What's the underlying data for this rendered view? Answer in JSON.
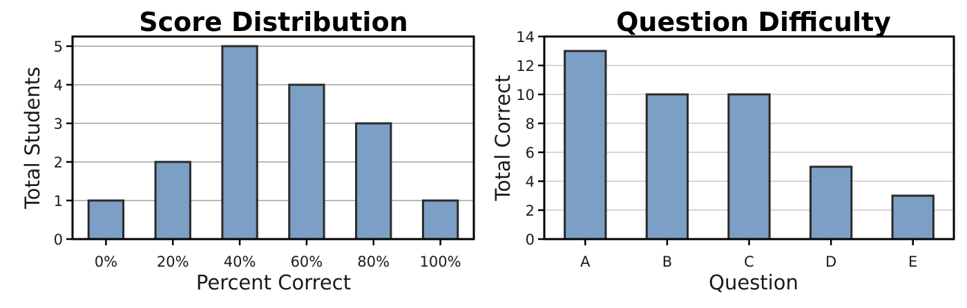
{
  "chart_data": [
    {
      "type": "bar",
      "title": "Score Distribution",
      "xlabel": "Percent Correct",
      "ylabel": "Total Students",
      "categories": [
        "0%",
        "20%",
        "40%",
        "60%",
        "80%",
        "100%"
      ],
      "values": [
        1,
        2,
        5,
        4,
        3,
        1
      ],
      "ylim": [
        0,
        5.25
      ],
      "yticks": [
        "0",
        "1",
        "2",
        "3",
        "4",
        "5"
      ],
      "grid": true,
      "bar_color": "#7b9fc5",
      "edge_color": "#2a2a2a"
    },
    {
      "type": "bar",
      "title": "Question Difficulty",
      "xlabel": "Question",
      "ylabel": "Total Correct",
      "categories": [
        "A",
        "B",
        "C",
        "D",
        "E"
      ],
      "values": [
        13,
        10,
        10,
        5,
        3
      ],
      "ylim": [
        0,
        14
      ],
      "yticks": [
        "0",
        "2",
        "4",
        "6",
        "8",
        "10",
        "12",
        "14"
      ],
      "grid": true,
      "bar_color": "#7b9fc5",
      "edge_color": "#2a2a2a"
    }
  ]
}
